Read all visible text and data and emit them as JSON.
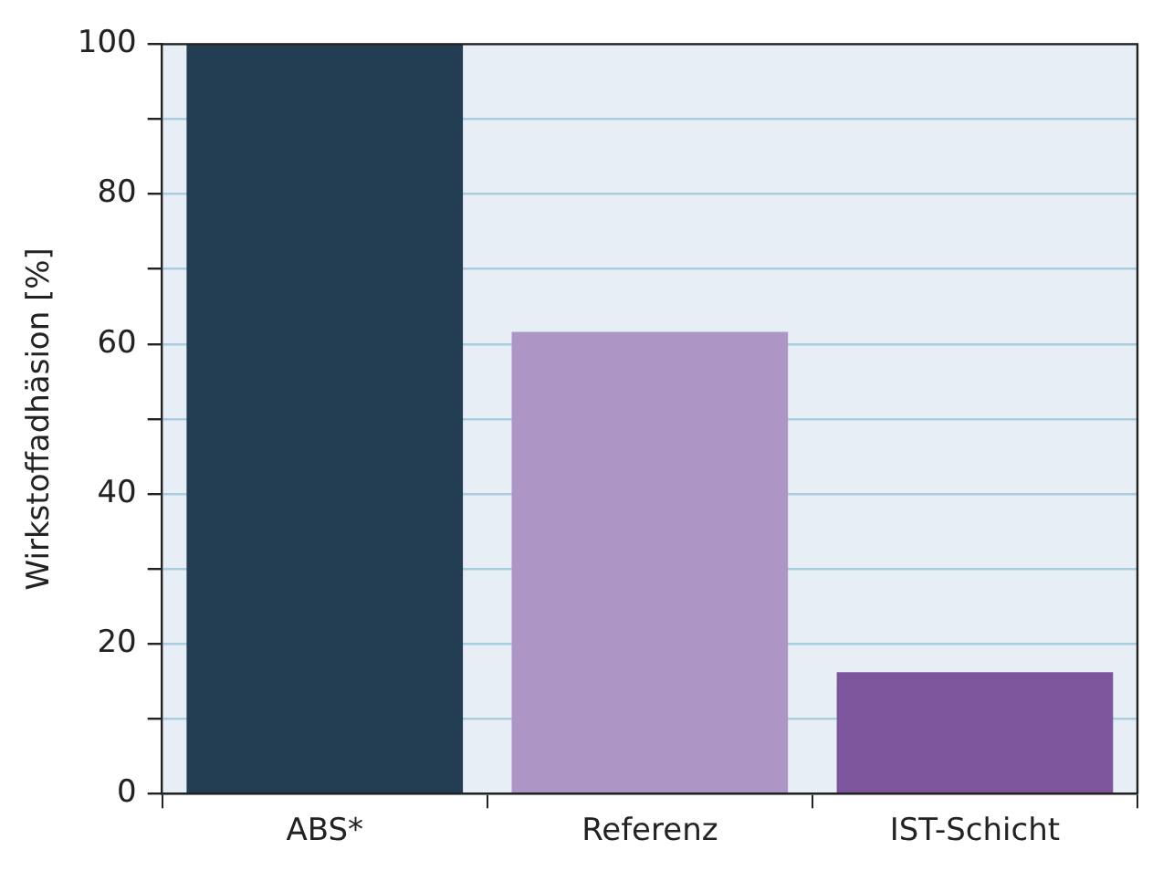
{
  "chart_data": {
    "type": "bar",
    "ylabel": "Wirkstoffadhäsion [%]",
    "categories": [
      "ABS*",
      "Referenz",
      "IST-Schicht"
    ],
    "values": [
      100,
      61.6,
      16.2
    ],
    "colors": [
      "#233d52",
      "#ad95c6",
      "#7d559c"
    ],
    "ylim": [
      0,
      100
    ],
    "yticks": [
      0,
      {
        "value": 10,
        "label": null
      },
      20,
      {
        "value": 30,
        "label": null
      },
      40,
      {
        "value": 50,
        "label": null
      },
      60,
      {
        "value": 70,
        "label": null
      },
      80,
      {
        "value": 90,
        "label": null
      },
      100
    ],
    "grid": "y",
    "legend": false
  }
}
